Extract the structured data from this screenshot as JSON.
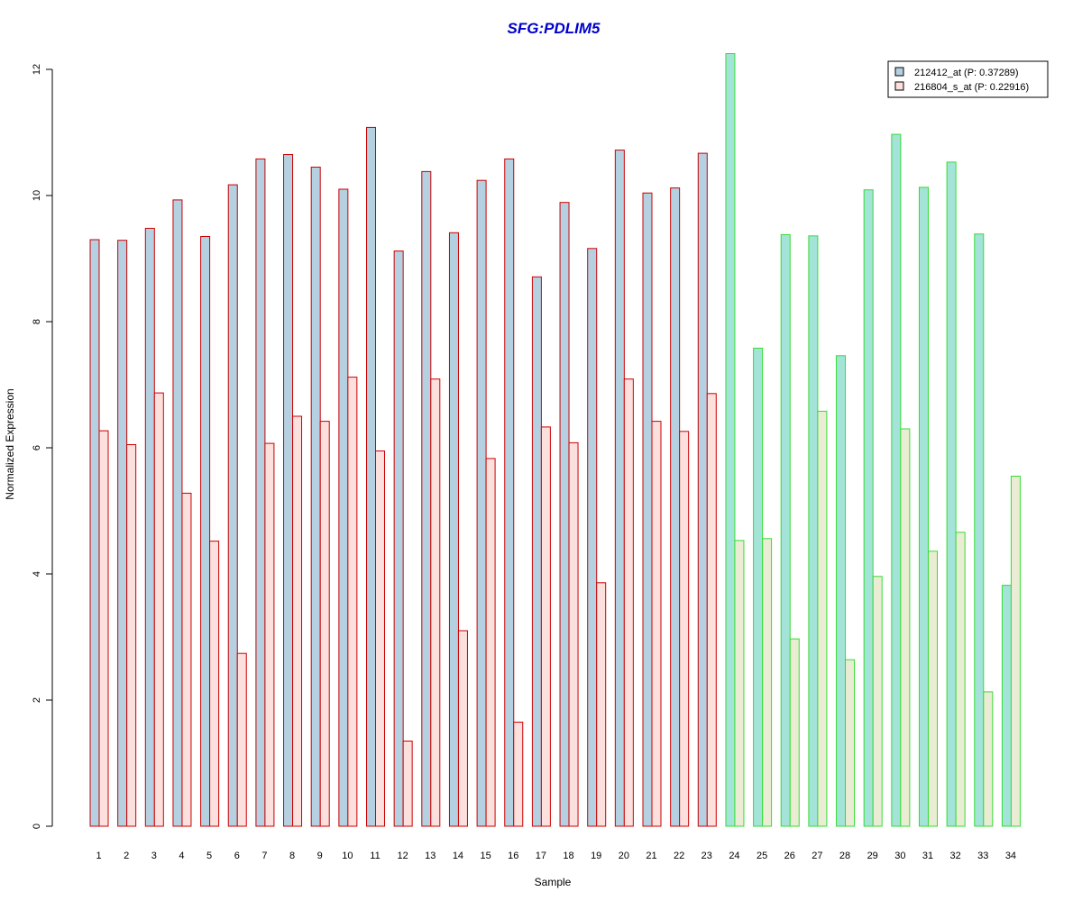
{
  "chart_data": {
    "type": "bar",
    "title": "SFG:PDLIM5",
    "xlabel": "Sample",
    "ylabel": "Normalized Expression",
    "ylim": [
      0,
      12.3
    ],
    "yticks": [
      0,
      2,
      4,
      6,
      8,
      10,
      12
    ],
    "categories": [
      "1",
      "2",
      "3",
      "4",
      "5",
      "6",
      "7",
      "8",
      "9",
      "10",
      "11",
      "12",
      "13",
      "14",
      "15",
      "16",
      "17",
      "18",
      "19",
      "20",
      "21",
      "22",
      "23",
      "24",
      "25",
      "26",
      "27",
      "28",
      "29",
      "30",
      "31",
      "32",
      "33",
      "34"
    ],
    "group_split_index": 23,
    "legend_position": "top-right",
    "grid": false,
    "series": [
      {
        "name": "212412_at (P: 0.37289)",
        "values": [
          9.3,
          9.29,
          9.48,
          9.93,
          9.35,
          10.17,
          10.58,
          10.65,
          10.45,
          10.1,
          11.08,
          9.12,
          10.38,
          9.41,
          10.24,
          10.58,
          8.71,
          9.89,
          9.16,
          10.72,
          10.04,
          10.12,
          10.67,
          12.25,
          7.58,
          9.38,
          9.36,
          7.46,
          10.09,
          10.97,
          10.13,
          10.53,
          9.39,
          3.82
        ]
      },
      {
        "name": "216804_s_at (P: 0.22916)",
        "values": [
          6.27,
          6.05,
          6.87,
          5.28,
          4.52,
          2.74,
          6.07,
          6.5,
          6.42,
          7.12,
          5.95,
          1.35,
          7.09,
          3.1,
          5.83,
          1.65,
          6.33,
          6.08,
          3.86,
          7.09,
          6.42,
          6.26,
          6.86,
          4.53,
          4.56,
          2.97,
          6.58,
          2.64,
          3.96,
          6.3,
          4.36,
          4.66,
          2.13,
          5.55
        ]
      }
    ],
    "colors": {
      "series1_fill_groupA": "#b5d0e1",
      "series2_fill_groupA": "#fbe0dd",
      "border_groupA": "#cc0000",
      "series1_fill_groupB": "#a4e3d8",
      "series2_fill_groupB": "#ebecd4",
      "border_groupB": "#33dd33",
      "title": "#0000cc"
    }
  }
}
